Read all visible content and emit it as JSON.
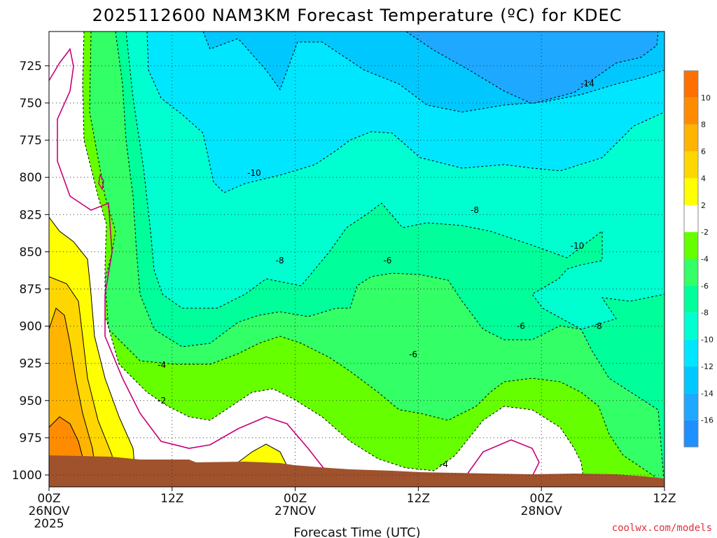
{
  "chart_data": {
    "type": "heatmap",
    "title": "2025112600 NAM3KM Forecast Temperature (ºC) for KDEC",
    "xlabel": "Forecast Time (UTC)",
    "ylabel": "",
    "x_ticks": [
      {
        "hour": 0,
        "label": "00Z",
        "sub1": "26NOV",
        "sub2": "2025"
      },
      {
        "hour": 12,
        "label": "12Z",
        "sub1": "",
        "sub2": ""
      },
      {
        "hour": 24,
        "label": "00Z",
        "sub1": "27NOV",
        "sub2": ""
      },
      {
        "hour": 36,
        "label": "12Z",
        "sub1": "",
        "sub2": ""
      },
      {
        "hour": 48,
        "label": "00Z",
        "sub1": "28NOV",
        "sub2": ""
      },
      {
        "hour": 60,
        "label": "12Z",
        "sub1": "",
        "sub2": ""
      }
    ],
    "xlim": [
      0,
      60
    ],
    "y_ticks": [
      725,
      750,
      775,
      800,
      825,
      850,
      875,
      900,
      925,
      950,
      975,
      1000
    ],
    "ylim_hPa": [
      702,
      1008
    ],
    "colorbar": {
      "levels": [
        -16,
        -14,
        -12,
        -10,
        -8,
        -6,
        -4,
        -2,
        2,
        4,
        6,
        8,
        10
      ],
      "colors": [
        "#1e90ff",
        "#1ea8ff",
        "#00c8ff",
        "#00e6ff",
        "#00ffd0",
        "#00ff9a",
        "#33ff66",
        "#66ff00",
        "#ffffff",
        "#ffff00",
        "#ffd700",
        "#ffb400",
        "#ff8c00",
        "#ff7000"
      ]
    },
    "contour_labels": [
      {
        "text": "-14",
        "hour": 52.5,
        "p": 737
      },
      {
        "text": "-10",
        "hour": 20,
        "p": 797
      },
      {
        "text": "-8",
        "hour": 41.5,
        "p": 822
      },
      {
        "text": "-10",
        "hour": 51.5,
        "p": 846
      },
      {
        "text": "-8",
        "hour": 22.5,
        "p": 856
      },
      {
        "text": "-6",
        "hour": 33,
        "p": 856
      },
      {
        "text": "-6",
        "hour": 46,
        "p": 900
      },
      {
        "text": "-8",
        "hour": 53.5,
        "p": 900
      },
      {
        "text": "-6",
        "hour": 35.5,
        "p": 919
      },
      {
        "text": "-4",
        "hour": 11,
        "p": 926
      },
      {
        "text": "-2",
        "hour": 11,
        "p": 950
      },
      {
        "text": "-4",
        "hour": 38.5,
        "p": 993
      }
    ]
  },
  "credit": "coolwx.com/models"
}
